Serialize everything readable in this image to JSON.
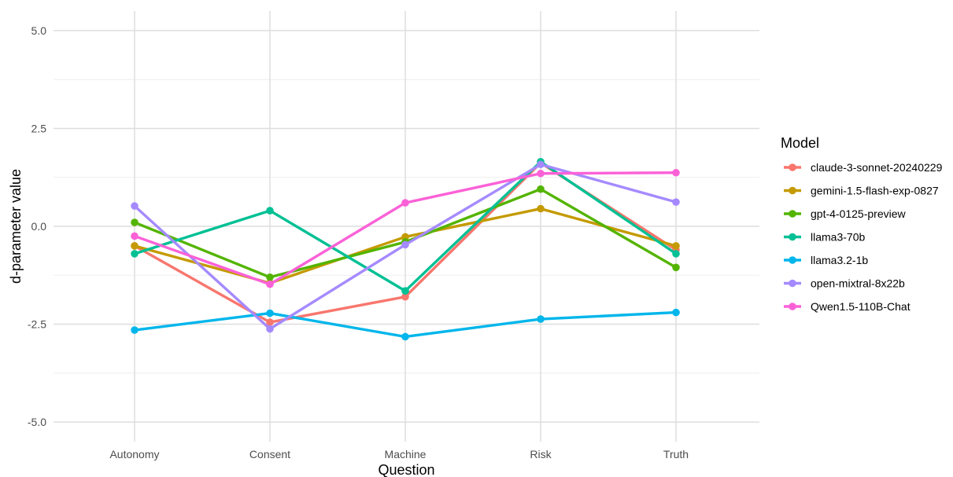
{
  "chart_data": {
    "type": "line",
    "xlabel": "Question",
    "ylabel": "d-parameter value",
    "categories": [
      "Autonomy",
      "Consent",
      "Machine",
      "Risk",
      "Truth"
    ],
    "ylim": [
      -5,
      5
    ],
    "yticks": [
      -5,
      -2.5,
      0,
      2.5,
      5
    ],
    "ytick_labels": [
      "-5.0",
      "-2.5",
      "0.0",
      "2.5",
      "5.0"
    ],
    "grid": true,
    "legend": {
      "title": "Model",
      "position": "right"
    },
    "series": [
      {
        "name": "claude-3-sonnet-20240229",
        "color": "#F8766D",
        "values": [
          -0.5,
          -2.45,
          -1.8,
          1.62,
          -0.6
        ]
      },
      {
        "name": "gemini-1.5-flash-exp-0827",
        "color": "#C49A00",
        "values": [
          -0.5,
          -1.45,
          -0.27,
          0.45,
          -0.5
        ]
      },
      {
        "name": "gpt-4-0125-preview",
        "color": "#53B400",
        "values": [
          0.1,
          -1.3,
          -0.4,
          0.95,
          -1.05
        ]
      },
      {
        "name": "llama3-70b",
        "color": "#00C094",
        "values": [
          -0.7,
          0.4,
          -1.65,
          1.65,
          -0.7
        ]
      },
      {
        "name": "llama3.2-1b",
        "color": "#00B6EB",
        "values": [
          -2.65,
          -2.22,
          -2.82,
          -2.37,
          -2.2
        ]
      },
      {
        "name": "open-mixtral-8x22b",
        "color": "#A58AFF",
        "values": [
          0.52,
          -2.62,
          -0.47,
          1.58,
          0.62
        ]
      },
      {
        "name": "Qwen1.5-110B-Chat",
        "color": "#FB61D7",
        "values": [
          -0.25,
          -1.48,
          0.6,
          1.35,
          1.37
        ]
      }
    ]
  }
}
